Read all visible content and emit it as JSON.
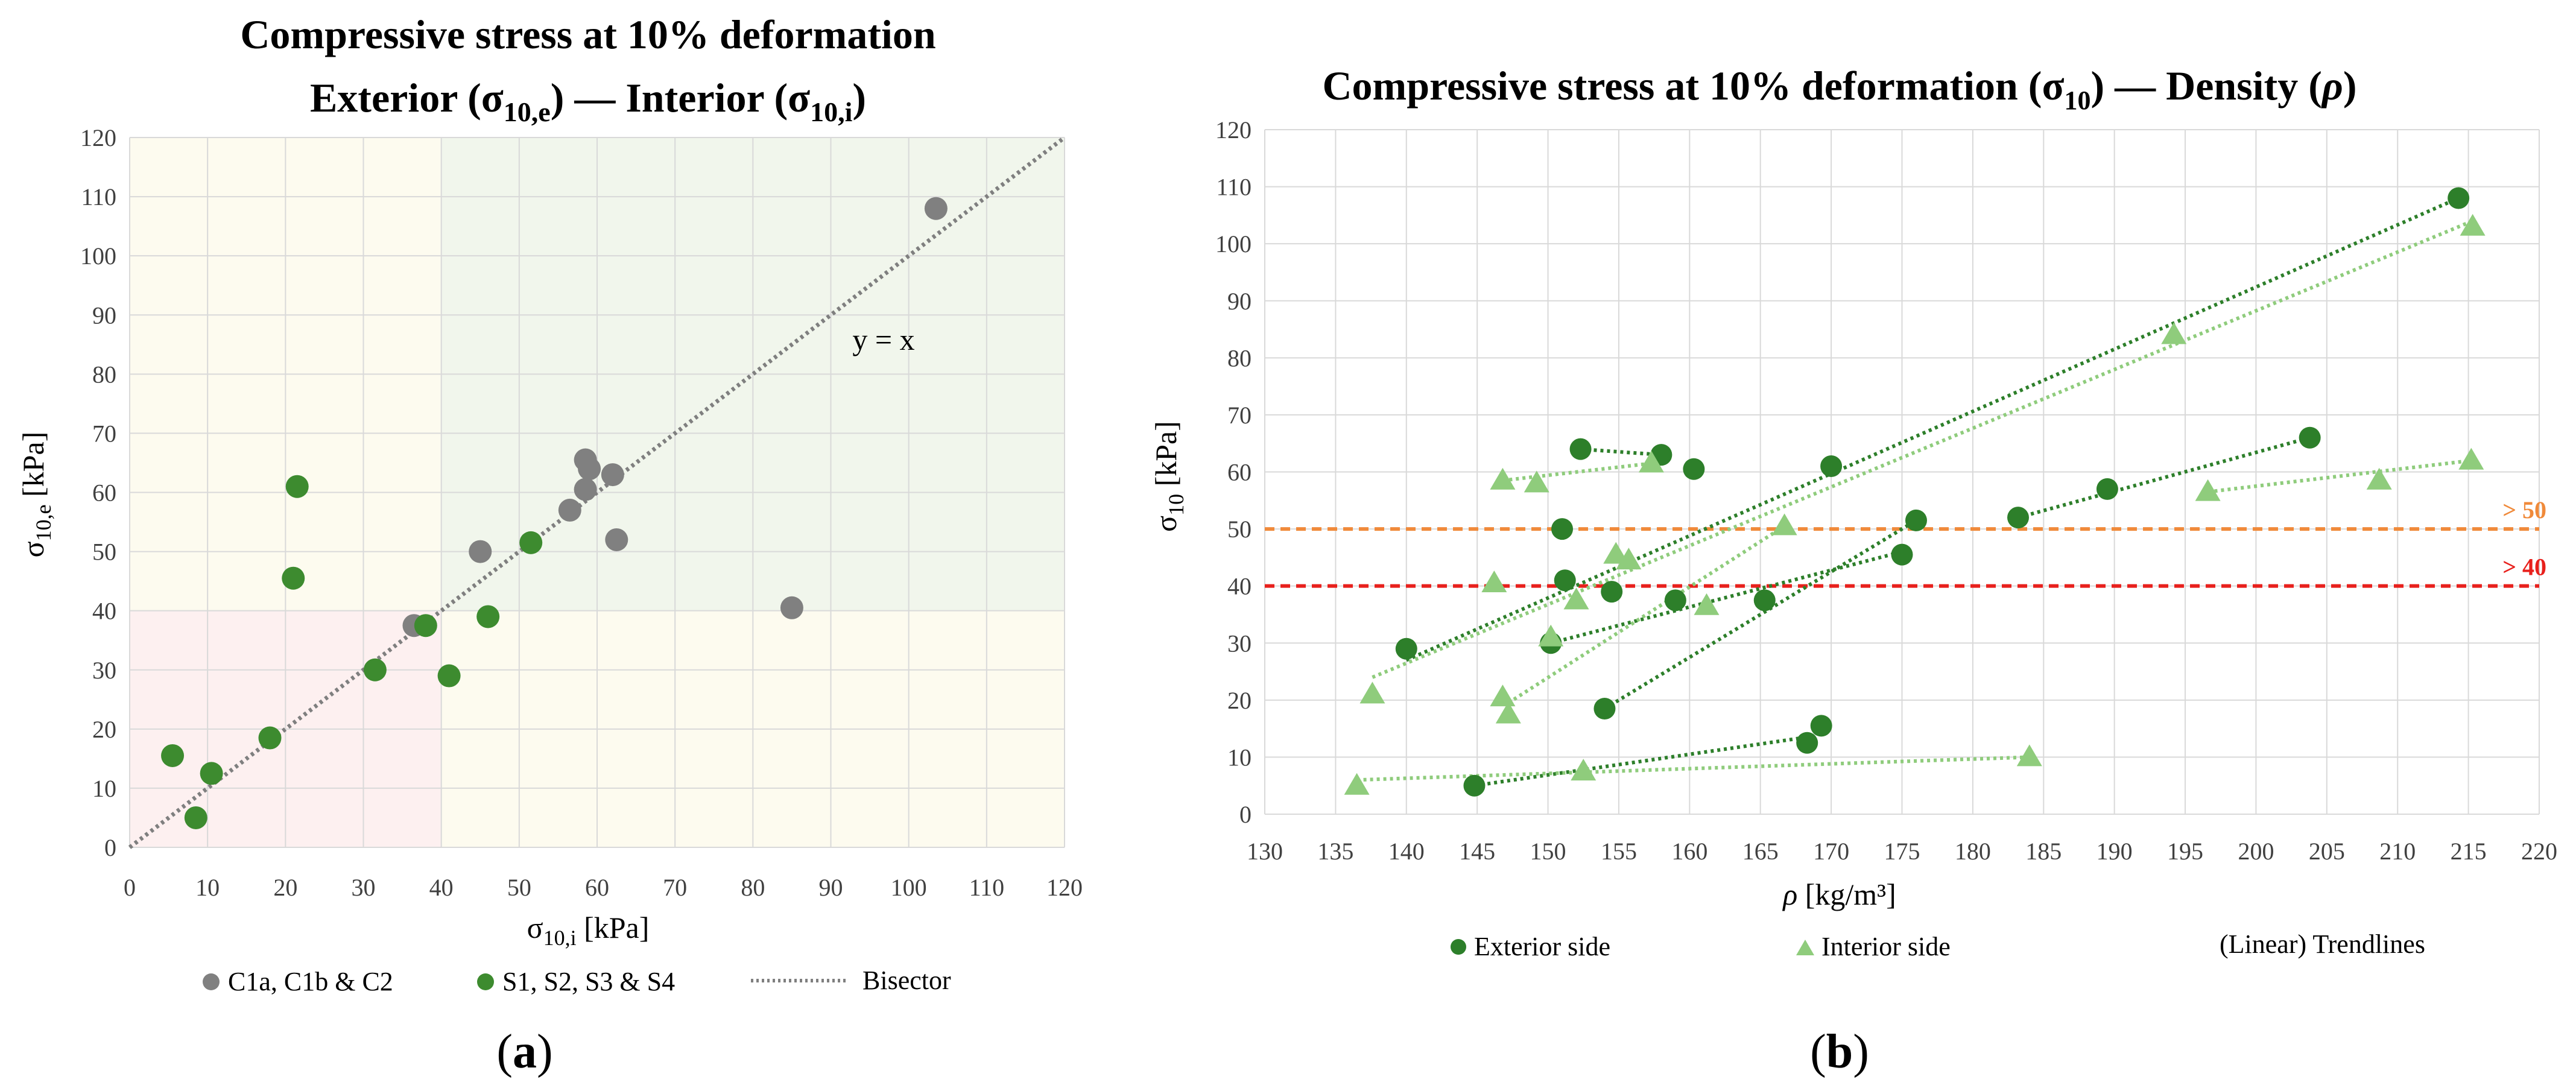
{
  "chart_data": [
    {
      "type": "scatter",
      "panel_label": "a",
      "title": "Compressive stress at 10% deformation",
      "subtitle": "Exterior (σ10,e) — Interior (σ10,i)",
      "xlabel": "σ10,i [kPa]",
      "ylabel": "σ10,e [kPa]",
      "xlim": [
        0,
        120
      ],
      "ylim": [
        0,
        120
      ],
      "ticks": [
        "0",
        "10",
        "20",
        "30",
        "40",
        "50",
        "60",
        "70",
        "80",
        "90",
        "100",
        "110",
        "120"
      ],
      "grid": true,
      "legend_position": "bottom",
      "annotation": "y = x",
      "regions": [
        {
          "x": [
            0,
            40
          ],
          "y": [
            0,
            40
          ],
          "color": "#fdf0f0"
        },
        {
          "x": [
            0,
            40
          ],
          "y": [
            40,
            120
          ],
          "color": "#fdfbef"
        },
        {
          "x": [
            40,
            120
          ],
          "y": [
            0,
            40
          ],
          "color": "#fdfbef"
        },
        {
          "x": [
            40,
            120
          ],
          "y": [
            40,
            120
          ],
          "color": "#f1f6ec"
        }
      ],
      "series": [
        {
          "name": "C1a, C1b & C2",
          "color": "#808080",
          "points": [
            [
              36.5,
              37.5
            ],
            [
              45,
              50
            ],
            [
              56.5,
              57
            ],
            [
              58.5,
              60.5
            ],
            [
              58.5,
              65.5
            ],
            [
              59,
              64
            ],
            [
              62,
              63
            ],
            [
              62.5,
              52
            ],
            [
              85,
              40.5
            ],
            [
              103.5,
              108
            ]
          ]
        },
        {
          "name": "S1, S2, S3 & S4",
          "color": "#3d8b2f",
          "points": [
            [
              5.5,
              15.5
            ],
            [
              8.5,
              5
            ],
            [
              10.5,
              12.5
            ],
            [
              18,
              18.5
            ],
            [
              21,
              45.5
            ],
            [
              21.5,
              61
            ],
            [
              31.5,
              30
            ],
            [
              38,
              37.5
            ],
            [
              41,
              29
            ],
            [
              46,
              39
            ],
            [
              51.5,
              51.5
            ]
          ]
        }
      ],
      "reference_line": {
        "name": "Bisector",
        "from": [
          0,
          0
        ],
        "to": [
          120,
          120
        ],
        "color": "#7f7f7f"
      }
    },
    {
      "type": "scatter",
      "panel_label": "b",
      "title": "Compressive stress at 10% deformation (σ10) — Density (ρ)",
      "xlabel": "ρ [kg/m³]",
      "ylabel": "σ10 [kPa]",
      "xlim": [
        130,
        220
      ],
      "ylim": [
        0,
        120
      ],
      "xticks": [
        "130",
        "135",
        "140",
        "145",
        "150",
        "155",
        "160",
        "165",
        "170",
        "175",
        "180",
        "185",
        "190",
        "195",
        "200",
        "205",
        "210",
        "215",
        "220"
      ],
      "yticks": [
        "0",
        "10",
        "20",
        "30",
        "40",
        "50",
        "60",
        "70",
        "80",
        "90",
        "100",
        "110",
        "120"
      ],
      "grid": true,
      "legend_position": "bottom",
      "thresholds": [
        {
          "label": "> 50",
          "y": 50,
          "color": "#f08a3a"
        },
        {
          "label": "> 40",
          "y": 40,
          "color": "#e8201c"
        }
      ],
      "trendline_legend": "(Linear) Trendlines",
      "series": [
        {
          "name": "Exterior side",
          "marker": "circle",
          "color": "#2d7f2a",
          "points": [
            [
              140,
              29
            ],
            [
              144.8,
              5
            ],
            [
              150.2,
              30
            ],
            [
              151,
              50
            ],
            [
              151.2,
              41
            ],
            [
              152.3,
              64
            ],
            [
              154,
              18.5
            ],
            [
              154.5,
              39
            ],
            [
              158,
              63
            ],
            [
              159,
              37.5
            ],
            [
              160.3,
              60.5
            ],
            [
              165.3,
              37.5
            ],
            [
              168.3,
              12.5
            ],
            [
              169.3,
              15.5
            ],
            [
              170,
              61
            ],
            [
              175,
              45.5
            ],
            [
              176,
              51.5
            ],
            [
              183.2,
              52
            ],
            [
              189.5,
              57
            ],
            [
              203.8,
              66
            ],
            [
              214.3,
              108
            ]
          ],
          "trendlines": [
            [
              [
                140,
                27
              ],
              [
                214.3,
                108
              ]
            ],
            [
              [
                144.8,
                5
              ],
              [
                168.3,
                13.5
              ]
            ],
            [
              [
                152.3,
                64
              ],
              [
                158,
                63
              ]
            ],
            [
              [
                150.2,
                30
              ],
              [
                175,
                46
              ]
            ],
            [
              [
                154,
                18.5
              ],
              [
                176,
                51.5
              ]
            ],
            [
              [
                183.2,
                52
              ],
              [
                203.8,
                66
              ]
            ]
          ]
        },
        {
          "name": "Interior side",
          "marker": "triangle",
          "color": "#8fcc7c",
          "points": [
            [
              136.5,
              5
            ],
            [
              137.6,
              21
            ],
            [
              146.2,
              40.5
            ],
            [
              146.8,
              58.5
            ],
            [
              146.8,
              20.5
            ],
            [
              147.2,
              17.5
            ],
            [
              149.2,
              58
            ],
            [
              150.2,
              31
            ],
            [
              152,
              37.5
            ],
            [
              152.5,
              7.5
            ],
            [
              154.8,
              45.5
            ],
            [
              155.7,
              44.5
            ],
            [
              157.3,
              61.5
            ],
            [
              161.2,
              36.5
            ],
            [
              166.7,
              50.5
            ],
            [
              184,
              10
            ],
            [
              194.2,
              84
            ],
            [
              196.6,
              56.5
            ],
            [
              208.7,
              58.5
            ],
            [
              215.2,
              62
            ],
            [
              215.3,
              103
            ]
          ],
          "trendlines": [
            [
              [
                137.6,
                24
              ],
              [
                215.3,
                104
              ]
            ],
            [
              [
                136.5,
                6
              ],
              [
                184,
                10
              ]
            ],
            [
              [
                146.8,
                58.5
              ],
              [
                157.3,
                61.5
              ]
            ],
            [
              [
                147.2,
                19.5
              ],
              [
                166.7,
                50.5
              ]
            ],
            [
              [
                196.6,
                56.5
              ],
              [
                215.2,
                62
              ]
            ]
          ]
        }
      ]
    }
  ]
}
